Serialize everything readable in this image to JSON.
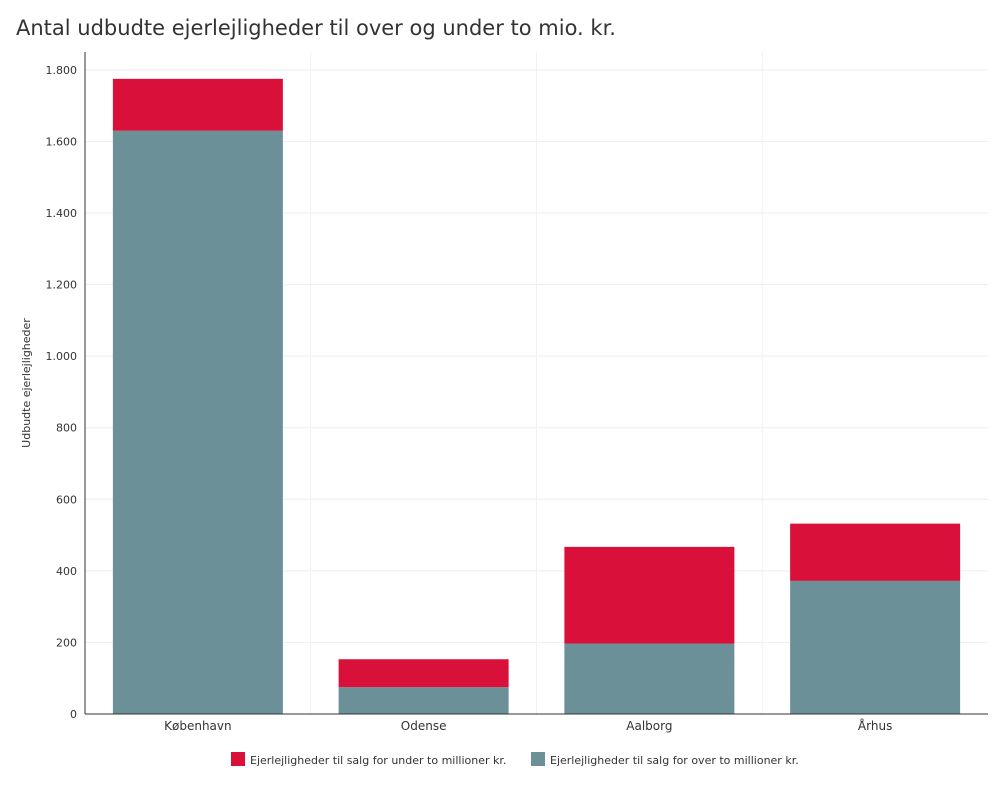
{
  "chart_data": {
    "type": "bar",
    "stacked": true,
    "title": "Antal udbudte ejerlejligheder til over og under to mio. kr.",
    "ylabel": "Udbudte ejerlejligheder",
    "xlabel": "",
    "categories": [
      "København",
      "Odense",
      "Aalborg",
      "Århus"
    ],
    "series": [
      {
        "name": "Ejerlejligheder til salg for over to millioner kr.",
        "color": "#6b9098",
        "values": [
          1630,
          75,
          197,
          372
        ]
      },
      {
        "name": "Ejerlejligheder til salg for under to millioner kr.",
        "color": "#d9113a",
        "values": [
          145,
          78,
          270,
          160
        ]
      }
    ],
    "legend_order": [
      1,
      0
    ],
    "ylim": [
      0,
      1850
    ],
    "yticks": [
      0,
      200,
      400,
      600,
      800,
      1000,
      1200,
      1400,
      1600,
      1800
    ],
    "ytick_labels": [
      "0",
      "200",
      "400",
      "600",
      "800",
      "1.000",
      "1.200",
      "1.400",
      "1.600",
      "1.800"
    ],
    "grid": true,
    "legend_position": "bottom"
  }
}
